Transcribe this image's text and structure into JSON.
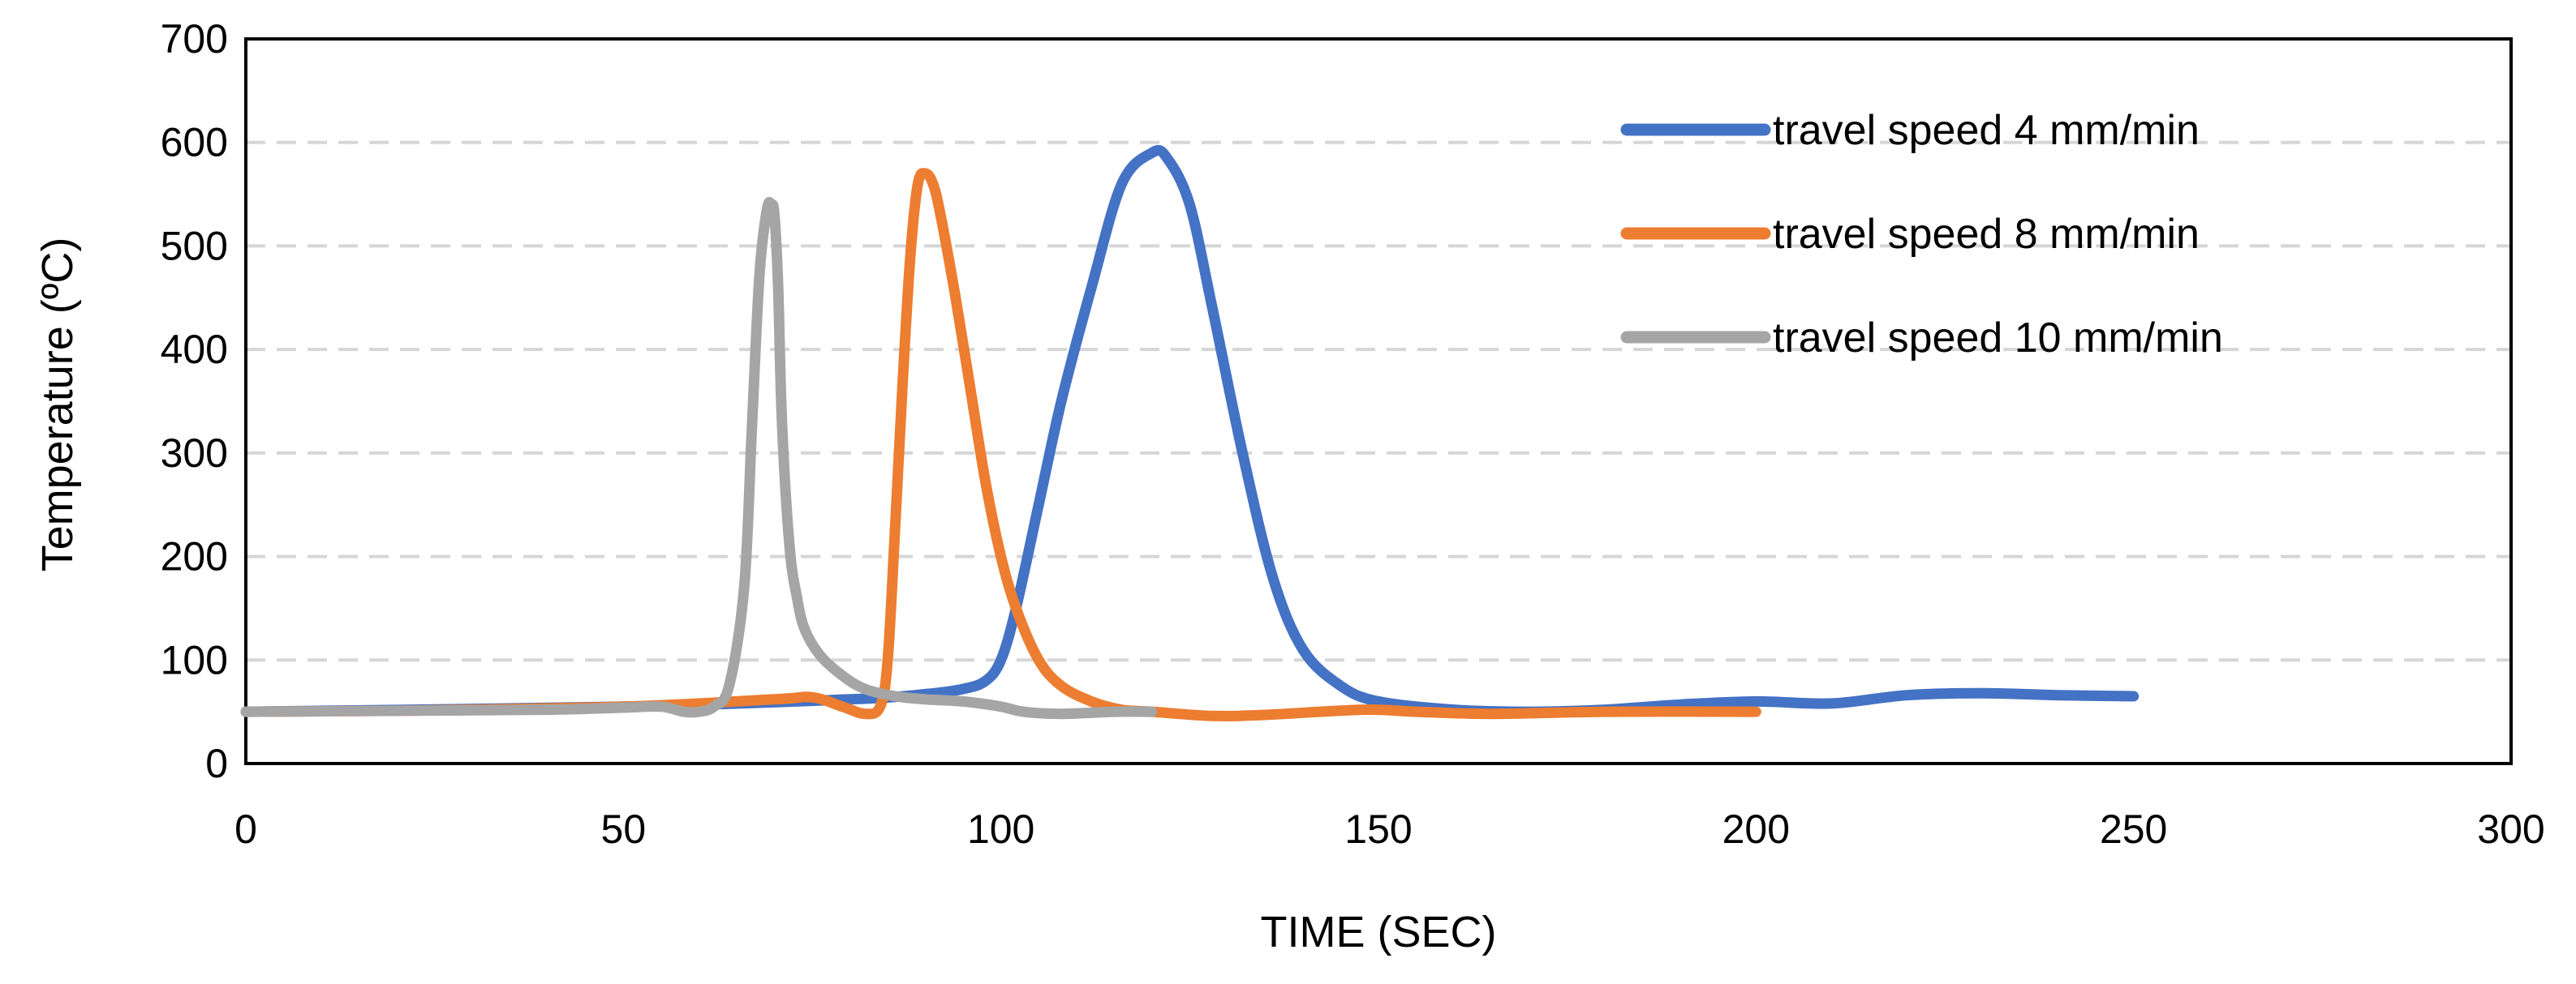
{
  "chart_data": {
    "type": "line",
    "title": "",
    "xlabel": "TIME (SEC)",
    "ylabel": "Temperature (ºC)",
    "xlim": [
      0,
      300
    ],
    "ylim": [
      0,
      700
    ],
    "xticks": [
      0,
      50,
      100,
      150,
      200,
      250,
      300
    ],
    "yticks": [
      0,
      100,
      200,
      300,
      400,
      500,
      600,
      700
    ],
    "xtick_labels": [
      "0",
      "50",
      "100",
      "150",
      "200",
      "250",
      "300"
    ],
    "ytick_labels": [
      "0",
      "100",
      "200",
      "300",
      "400",
      "500",
      "600",
      "700"
    ],
    "grid": "horizontal dashed",
    "legend_position": "top-right",
    "series": [
      {
        "name": "travel speed 4 mm/min",
        "color": "#4472C4",
        "x": [
          0,
          50,
          80,
          90,
          95,
          98,
          100,
          102,
          105,
          108,
          112,
          116,
          120,
          122,
          125,
          128,
          132,
          136,
          140,
          145,
          150,
          160,
          170,
          180,
          190,
          200,
          210,
          220,
          230,
          240,
          250
        ],
        "y": [
          50,
          55,
          62,
          67,
          72,
          80,
          100,
          150,
          250,
          350,
          460,
          560,
          590,
          585,
          540,
          440,
          300,
          180,
          110,
          75,
          60,
          52,
          50,
          52,
          57,
          60,
          58,
          66,
          68,
          66,
          65
        ]
      },
      {
        "name": "travel speed 8 mm/min",
        "color": "#ED7D31",
        "x": [
          0,
          20,
          50,
          70,
          75,
          79,
          82,
          84,
          85,
          86,
          87,
          88,
          89,
          90,
          91,
          92,
          94,
          96,
          98,
          100,
          102,
          105,
          108,
          112,
          116,
          120,
          128,
          135,
          148,
          155,
          165,
          180,
          200
        ],
        "y": [
          50,
          51,
          55,
          62,
          64,
          55,
          48,
          55,
          100,
          230,
          370,
          490,
          560,
          570,
          560,
          530,
          450,
          360,
          270,
          200,
          150,
          100,
          75,
          60,
          52,
          50,
          46,
          47,
          52,
          50,
          48,
          50,
          50
        ]
      },
      {
        "name": "travel speed 10 mm/min",
        "color": "#A5A5A5",
        "x": [
          0,
          20,
          40,
          50,
          55,
          58,
          60,
          62,
          64,
          66,
          67,
          68,
          69,
          69.6,
          70,
          70.5,
          71,
          72,
          73,
          74,
          76,
          79,
          82,
          86,
          90,
          95,
          100,
          103,
          108,
          115,
          120
        ],
        "y": [
          50,
          51,
          52,
          54,
          55,
          50,
          50,
          55,
          75,
          170,
          320,
          470,
          535,
          540,
          530,
          460,
          330,
          210,
          160,
          130,
          105,
          85,
          72,
          65,
          62,
          60,
          55,
          50,
          48,
          50,
          50
        ]
      }
    ]
  }
}
